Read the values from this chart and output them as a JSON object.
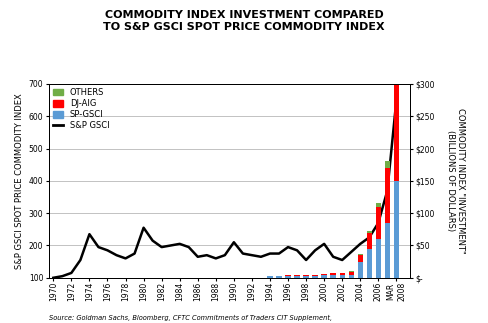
{
  "title_line1": "COMMODITY INDEX INVESTMENT COMPARED",
  "title_line2": "TO S&P GSCI SPOT PRICE COMMODITY INDEX",
  "left_ylabel": "S&P GSCI SPOT PRICE COMMODITY INDEX",
  "right_ylabel": "COMMODITY INDEX \"INVESTMENT\"\n(BILLIONS OF DOLLARS)",
  "source": "Source: Goldman Sachs, Bloomberg, CFTC Commitments of Traders CIT Supplement,",
  "sp_gsci_years": [
    1970,
    1971,
    1972,
    1973,
    1974,
    1975,
    1976,
    1977,
    1978,
    1979,
    1980,
    1981,
    1982,
    1983,
    1984,
    1985,
    1986,
    1987,
    1988,
    1989,
    1990,
    1991,
    1992,
    1993,
    1994,
    1995,
    1996,
    1997,
    1998,
    1999,
    2000,
    2001,
    2002,
    2003,
    2004,
    2005,
    2006,
    2007,
    2008
  ],
  "sp_gsci_values": [
    100,
    105,
    115,
    155,
    235,
    195,
    185,
    170,
    160,
    175,
    255,
    215,
    195,
    200,
    205,
    195,
    165,
    170,
    160,
    170,
    210,
    175,
    170,
    165,
    175,
    175,
    195,
    185,
    155,
    185,
    205,
    165,
    155,
    180,
    205,
    225,
    270,
    370,
    650
  ],
  "bar_years": [
    1994,
    1995,
    1996,
    1997,
    1998,
    1999,
    2000,
    2001,
    2002,
    2003,
    2004,
    2005,
    2006,
    2007,
    2008
  ],
  "spgsci_bars": [
    2,
    2,
    3,
    3,
    3,
    3,
    4,
    4,
    4,
    5,
    25,
    45,
    60,
    85,
    150
  ],
  "djaig_bars": [
    1,
    1,
    2,
    2,
    2,
    2,
    2,
    3,
    3,
    4,
    10,
    25,
    50,
    85,
    175
  ],
  "others_bars": [
    0,
    0,
    0,
    0,
    0,
    0,
    0,
    0,
    0,
    1,
    2,
    3,
    5,
    10,
    25
  ],
  "color_spgsci": "#5b9bd5",
  "color_djaig": "#ff0000",
  "color_others": "#70ad47",
  "color_line": "#000000",
  "ylim_left": [
    100,
    700
  ],
  "ylim_right": [
    0,
    300
  ],
  "yticks_left": [
    100,
    200,
    300,
    400,
    500,
    600,
    700
  ],
  "yticks_right": [
    0,
    50,
    100,
    150,
    200,
    250,
    300
  ],
  "ytick_right_labels": [
    "$-",
    "$50",
    "$100",
    "$150",
    "$200",
    "$250",
    "$300"
  ],
  "bar_width": 0.6,
  "legend_labels": [
    "OTHERS",
    "DJ-AIG",
    "SP-GSCI",
    "S&P GSCI"
  ],
  "legend_colors": [
    "#70ad47",
    "#ff0000",
    "#5b9bd5",
    "#000000"
  ],
  "background_color": "#ffffff",
  "title_fontsize": 8,
  "label_fontsize": 6,
  "tick_fontsize": 5.5,
  "legend_fontsize": 6
}
